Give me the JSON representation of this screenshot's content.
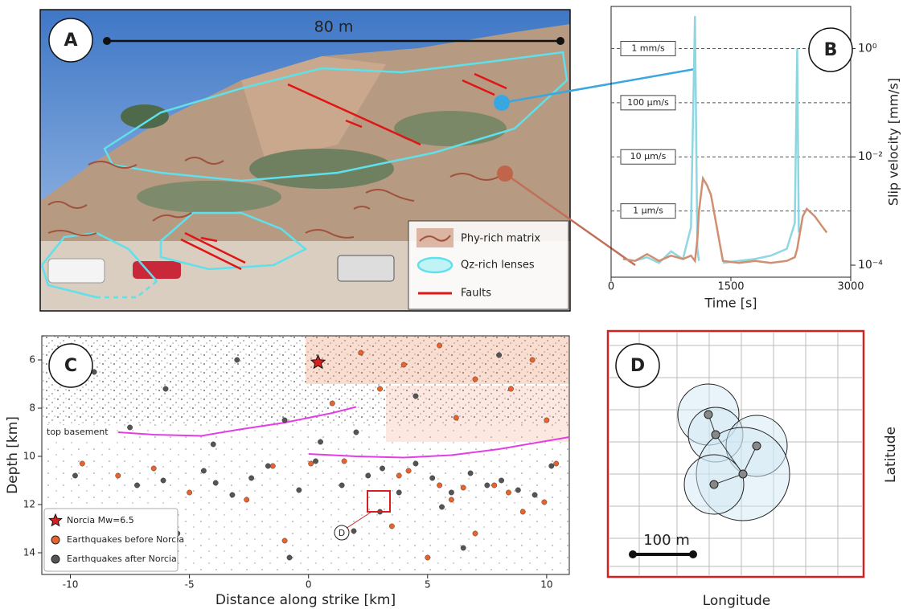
{
  "figure": {
    "photo": {
      "panel_label": "A",
      "scale_label": "80 m",
      "legend": [
        "Phy-rich matrix",
        "Qz-rich lenses",
        "Faults"
      ]
    },
    "map": {
      "panel_label": "D",
      "scale_label": "100 m",
      "xlabel": "Longitude",
      "ylabel": "Latitude"
    }
  },
  "chart_data": [
    {
      "panel_label": "B",
      "type": "line",
      "xlabel": "Time [s]",
      "ylabel": "Slip velocity [mm/s]",
      "x": [
        150,
        300,
        450,
        600,
        750,
        900,
        1000,
        1050,
        1080,
        1100,
        1150,
        1200,
        1250,
        1400,
        1600,
        1800,
        2000,
        2200,
        2300,
        2330,
        2350,
        2400,
        2450,
        2550,
        2650,
        2700
      ],
      "series": [
        {
          "color": "#8fd6e3",
          "values": [
            null,
            0.00012,
            0.00014,
            0.00011,
            0.00018,
            0.00013,
            0.0005,
            4,
            0.0002,
            0.00012,
            null,
            null,
            null,
            0.00011,
            0.00012,
            0.00013,
            0.00015,
            0.0002,
            0.0006,
            1,
            0.0004,
            null,
            null,
            null,
            null,
            null
          ]
        },
        {
          "color": "#d08f70",
          "values": [
            0.00013,
            0.00012,
            0.00016,
            0.00012,
            0.00015,
            0.00013,
            0.00015,
            0.00012,
            0.0003,
            0.001,
            0.004,
            0.003,
            0.002,
            0.00012,
            0.00011,
            0.00012,
            0.00011,
            0.00012,
            0.00014,
            0.0002,
            0.0003,
            0.0008,
            0.0011,
            0.0008,
            0.0005,
            0.0004
          ]
        }
      ],
      "xlim": [
        0,
        3000
      ],
      "xticks": [
        0,
        1500,
        3000
      ],
      "ylim": [
        6e-05,
        6
      ],
      "log_y": true,
      "yticks": [
        {
          "value": 0.0001,
          "label": "10⁻⁴"
        },
        {
          "value": 0.01,
          "label": "10⁻²"
        },
        {
          "value": 1,
          "label": "10⁰"
        }
      ],
      "reference_lines": [
        {
          "value": 1,
          "label": "1 mm/s"
        },
        {
          "value": 0.1,
          "label": "100 µm/s"
        },
        {
          "value": 0.01,
          "label": "10 µm/s"
        },
        {
          "value": 0.001,
          "label": "1 µm/s"
        }
      ]
    },
    {
      "panel_label": "C",
      "type": "scatter",
      "xlabel": "Distance along strike [km]",
      "ylabel": "Depth [km]",
      "series": [
        {
          "name": "Earthquakes before Norcia",
          "color": "#e8642c",
          "x": [
            -9.5,
            -8,
            -6.5,
            -5,
            -2.6,
            -1.5,
            0.1,
            1.5,
            3.8,
            4.2,
            5.5,
            6,
            6.5,
            7.8,
            8.4,
            9,
            9.9,
            10.4,
            3.5,
            7,
            5,
            -1,
            2.2,
            4,
            5.5,
            7,
            8.5,
            10,
            1,
            3,
            6.2,
            9.4
          ],
          "y": [
            10.3,
            10.8,
            10.5,
            11.5,
            11.8,
            10.4,
            10.3,
            10.2,
            10.8,
            10.6,
            11.2,
            11.8,
            11.3,
            11.2,
            11.5,
            12.3,
            11.9,
            10.3,
            12.9,
            13.2,
            14.2,
            13.5,
            5.7,
            6.2,
            5.4,
            6.8,
            7.2,
            8.5,
            7.8,
            7.2,
            8.4,
            6
          ]
        },
        {
          "name": "Earthquakes after Norcia",
          "color": "#555555",
          "x": [
            -9.8,
            -7.2,
            -6.1,
            -4.4,
            -3.9,
            -3.2,
            -2.4,
            -1.7,
            -0.4,
            0.3,
            1.4,
            2.5,
            3.1,
            3.8,
            4.5,
            5.2,
            6,
            6.8,
            7.5,
            8.1,
            8.8,
            9.5,
            10.2,
            3,
            5.6,
            -8.5,
            -5.5,
            -0.8,
            1.9,
            6.5,
            -9,
            -6,
            -3,
            -1,
            2,
            4.5,
            8,
            -7.5,
            -4,
            0.5
          ],
          "y": [
            10.8,
            11.2,
            11,
            10.6,
            11.1,
            11.6,
            10.9,
            10.4,
            11.4,
            10.2,
            11.2,
            10.8,
            10.5,
            11.5,
            10.3,
            10.9,
            11.5,
            10.7,
            11.2,
            11,
            11.4,
            11.6,
            10.4,
            12.3,
            12.1,
            12.5,
            13.2,
            14.2,
            13.1,
            13.8,
            6.5,
            7.2,
            6,
            8.5,
            9,
            7.5,
            5.8,
            8.8,
            9.5,
            9.4
          ]
        }
      ],
      "mainshock": {
        "name": "Norcia Mw=6.5",
        "color": "#d62020",
        "x": 0.4,
        "y": 6.1
      },
      "basement": {
        "label": "top basement",
        "color": "#e23ee6",
        "x": [
          -8,
          -6.5,
          -4.5,
          -3,
          -1,
          1,
          2,
          null,
          0,
          2,
          4,
          6,
          8,
          10.95
        ],
        "y": [
          9,
          9.1,
          9.15,
          8.9,
          8.6,
          8.2,
          7.95,
          null,
          9.9,
          10,
          10.05,
          9.95,
          9.7,
          9.2
        ]
      },
      "inset_label": "D",
      "xlim": [
        -11.2,
        10.95
      ],
      "xticks": [
        -10,
        -5,
        0,
        5,
        10
      ],
      "ylim": [
        5,
        14.9
      ],
      "yticks": [
        6,
        8,
        10,
        12,
        14
      ],
      "y_inverted": true,
      "legend": "lower left"
    }
  ]
}
